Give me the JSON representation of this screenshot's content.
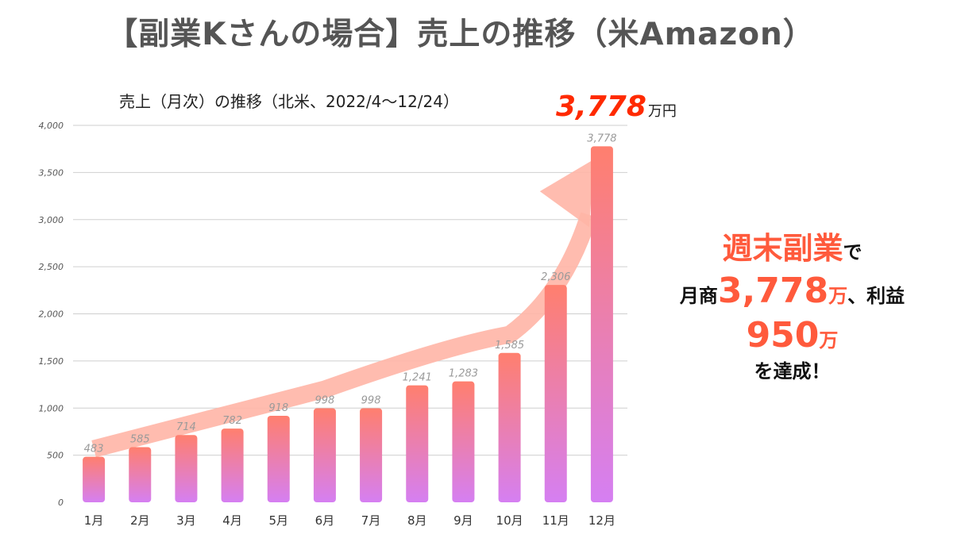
{
  "header": {
    "title": "【副業Kさんの場合】売上の推移（米Amazon）"
  },
  "chart_data": {
    "type": "bar",
    "title": "売上（月次）の推移（北米、2022/4〜12/24）",
    "xlabel": "",
    "ylabel": "",
    "categories": [
      "1月",
      "2月",
      "3月",
      "4月",
      "5月",
      "6月",
      "7月",
      "8月",
      "9月",
      "10月",
      "11月",
      "12月"
    ],
    "values": [
      483,
      585,
      714,
      782,
      918,
      998,
      998,
      1241,
      1283,
      1585,
      2306,
      3778
    ],
    "value_labels": [
      "483",
      "585",
      "714",
      "782",
      "918",
      "998",
      "998",
      "1,241",
      "1,283",
      "1,585",
      "2,306",
      "3,778"
    ],
    "ylim": [
      0,
      4000
    ],
    "yticks": [
      0,
      500,
      1000,
      1500,
      2000,
      2500,
      3000,
      3500,
      4000
    ],
    "ytick_labels": [
      "0",
      "500",
      "1,000",
      "1,500",
      "2,000",
      "2,500",
      "3,000",
      "3,500",
      "4,000"
    ],
    "grid": true,
    "legend": "none",
    "bar_gradient": {
      "top": "#ff7f6e",
      "bottom": "#d57ff2"
    },
    "trend_arrow_color": "#ffb5a6"
  },
  "highlight": {
    "value": "3,778",
    "unit": "万円"
  },
  "callout": {
    "line1_accent": "週末副業",
    "line1_suffix": "で",
    "line2_prefix": "月商",
    "line2_value": "3,778",
    "line2_unit": "万",
    "line2_suffix": "、利益",
    "line3_value": "950",
    "line3_unit": "万",
    "line4": "を達成！"
  }
}
